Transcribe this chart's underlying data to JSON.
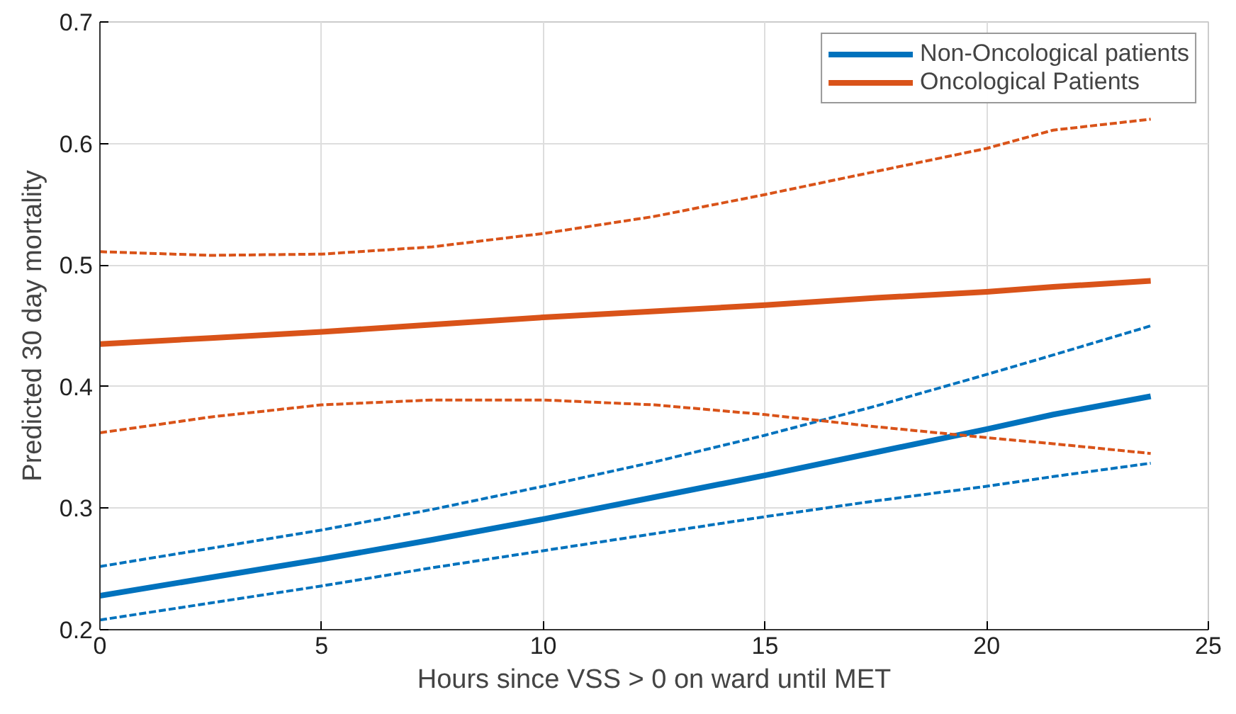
{
  "chart_data": {
    "type": "line",
    "xlabel": "Hours since VSS > 0 on ward until MET",
    "ylabel": "Predicted 30 day mortality",
    "x": [
      0,
      2.5,
      5,
      7.5,
      10,
      12.5,
      15,
      17.5,
      20,
      21.5,
      23.7
    ],
    "series": [
      {
        "name": "Non-Oncological patients",
        "color": "#0072bd",
        "values": [
          0.228,
          0.243,
          0.258,
          0.274,
          0.291,
          0.309,
          0.327,
          0.346,
          0.365,
          0.377,
          0.392
        ]
      },
      {
        "name": "Oncological Patients",
        "color": "#d95319",
        "values": [
          0.435,
          0.44,
          0.445,
          0.451,
          0.457,
          0.462,
          0.467,
          0.473,
          0.478,
          0.482,
          0.487
        ]
      },
      {
        "color": "#0072bd",
        "line_style": "dashed",
        "values": [
          0.208,
          0.222,
          0.236,
          0.251,
          0.265,
          0.279,
          0.293,
          0.306,
          0.318,
          0.326,
          0.337
        ]
      },
      {
        "color": "#0072bd",
        "line_style": "dashed",
        "values": [
          0.252,
          0.267,
          0.282,
          0.299,
          0.318,
          0.338,
          0.36,
          0.384,
          0.41,
          0.426,
          0.45
        ]
      },
      {
        "color": "#d95319",
        "line_style": "dashed",
        "values": [
          0.362,
          0.375,
          0.385,
          0.389,
          0.389,
          0.385,
          0.377,
          0.367,
          0.358,
          0.353,
          0.345
        ]
      },
      {
        "color": "#d95319",
        "line_style": "dashed",
        "values": [
          0.511,
          0.508,
          0.509,
          0.515,
          0.526,
          0.54,
          0.558,
          0.577,
          0.596,
          0.611,
          0.62
        ]
      }
    ],
    "xlim": [
      0,
      25
    ],
    "ylim": [
      0.2,
      0.7
    ],
    "xticks": [
      0,
      5,
      10,
      15,
      20,
      25
    ],
    "yticks": [
      0.2,
      0.3,
      0.4,
      0.5,
      0.6,
      0.7
    ],
    "grid": true,
    "legend": "top right",
    "marker": "none",
    "line_style": "solid"
  }
}
